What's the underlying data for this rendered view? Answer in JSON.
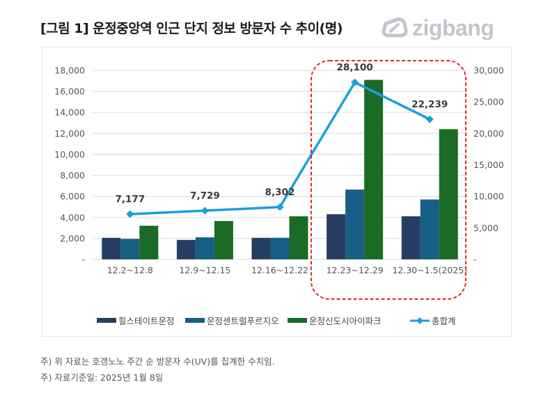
{
  "title": "[그림 1] 운정중앙역 인근 단지 정보 방문자 수 추이(명)",
  "brand": {
    "name": "zigbang",
    "color": "#c2c6cc"
  },
  "notes": [
    "주) 위 자료는 호갱노노 주간 순 방문자 수(UV)를 집계한 수치임.",
    "주) 자료기준일: 2025년 1월 8일"
  ],
  "chart_data": {
    "type": "bar",
    "categories": [
      "12.2~12.8",
      "12.9~12.15",
      "12.16~12.22",
      "12.23~12.29",
      "12.30~1.5(2025)"
    ],
    "series": [
      {
        "name": "힐스테이트운정",
        "type": "bar",
        "axis": "left",
        "color": "#263e63",
        "values": [
          2050,
          1850,
          2050,
          4300,
          4100
        ]
      },
      {
        "name": "운정센트럴푸르지오",
        "type": "bar",
        "axis": "left",
        "color": "#175f84",
        "values": [
          1950,
          2100,
          2050,
          6650,
          5700
        ]
      },
      {
        "name": "운정신도시아이파크",
        "type": "bar",
        "axis": "left",
        "color": "#1b6b26",
        "values": [
          3200,
          3650,
          4100,
          17100,
          12400
        ]
      },
      {
        "name": "총합계",
        "type": "line",
        "axis": "right",
        "color": "#1a9fd8",
        "values": [
          7177,
          7729,
          8302,
          28100,
          22239
        ],
        "labels": [
          "7,177",
          "7,729",
          "8,302",
          "28,100",
          "22,239"
        ]
      }
    ],
    "y_left": {
      "min": 0,
      "max": 18000,
      "ticks": [
        "-",
        "2,000",
        "4,000",
        "6,000",
        "8,000",
        "10,000",
        "12,000",
        "14,000",
        "16,000",
        "18,000"
      ]
    },
    "y_right": {
      "min": 0,
      "max": 30000,
      "ticks": [
        "-",
        "5,000",
        "10,000",
        "15,000",
        "20,000",
        "25,000",
        "30,000"
      ]
    },
    "grid": true,
    "legend_position": "bottom",
    "highlight": {
      "categories": [
        "12.23~12.29",
        "12.30~1.5(2025)"
      ],
      "color": "#e8262d",
      "style": "dashed"
    }
  }
}
